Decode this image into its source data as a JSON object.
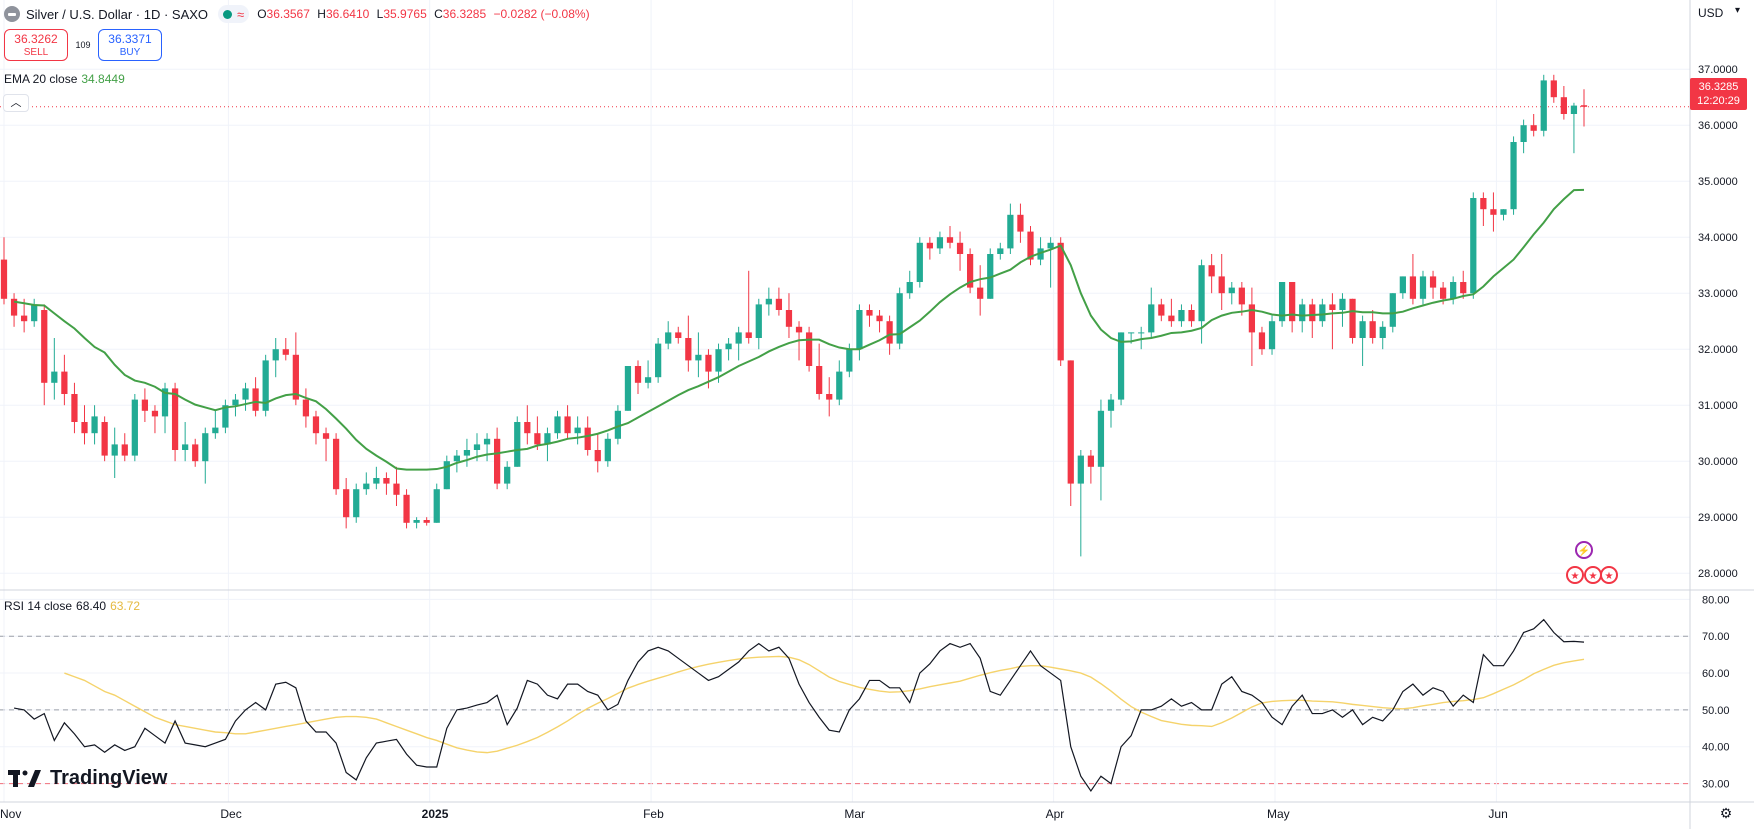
{
  "header": {
    "title": "Silver / U.S. Dollar · 1D · SAXO",
    "ohlc": [
      {
        "label": "O",
        "value": "36.3567"
      },
      {
        "label": "H",
        "value": "36.6410"
      },
      {
        "label": "L",
        "value": "35.9765"
      },
      {
        "label": "C",
        "value": "36.3285"
      }
    ],
    "change": "−0.0282 (−0.08%)"
  },
  "trade": {
    "sell_price": "36.3262",
    "sell_label": "SELL",
    "spread": "109",
    "buy_price": "36.3371",
    "buy_label": "BUY"
  },
  "indicators": {
    "ema_label": "EMA 20 close",
    "ema_value": "34.8449",
    "rsi_label": "RSI 14 close",
    "rsi_value": "68.40",
    "rsi_ma_value": "63.72"
  },
  "price_axis": {
    "currency": "USD",
    "last_price": "36.3285",
    "countdown": "12:20:29",
    "price_ticks": [
      "37.0000",
      "36.0000",
      "35.0000",
      "34.0000",
      "33.0000",
      "32.0000",
      "31.0000",
      "30.0000",
      "29.0000",
      "28.0000"
    ],
    "rsi_ticks": [
      "80.00",
      "70.00",
      "60.00",
      "50.00",
      "40.00",
      "30.00"
    ]
  },
  "time_axis": {
    "labels": [
      "Nov",
      "Dec",
      "2025",
      "Feb",
      "Mar",
      "Apr",
      "May",
      "Jun"
    ]
  },
  "branding": {
    "name": "TradingView"
  },
  "colors": {
    "up": "#22ab94",
    "down": "#f23645",
    "ema": "#43a047",
    "rsi": "#131722",
    "rsi_ma": "#f5d36b"
  },
  "chart_data": {
    "type": "candlestick",
    "candles": [
      [
        33.6,
        34.0,
        32.8,
        32.9
      ],
      [
        32.9,
        33.0,
        32.4,
        32.6
      ],
      [
        32.6,
        32.9,
        32.3,
        32.5
      ],
      [
        32.5,
        32.9,
        32.4,
        32.8
      ],
      [
        32.7,
        32.8,
        31.0,
        31.4
      ],
      [
        31.4,
        32.2,
        31.1,
        31.6
      ],
      [
        31.6,
        31.9,
        31.0,
        31.2
      ],
      [
        31.2,
        31.4,
        30.5,
        30.7
      ],
      [
        30.7,
        31.0,
        30.3,
        30.5
      ],
      [
        30.5,
        31.0,
        30.3,
        30.8
      ],
      [
        30.7,
        30.8,
        30.0,
        30.1
      ],
      [
        30.1,
        30.6,
        29.7,
        30.3
      ],
      [
        30.3,
        30.5,
        30.0,
        30.1
      ],
      [
        30.1,
        31.2,
        30.0,
        31.1
      ],
      [
        31.1,
        31.3,
        30.7,
        30.9
      ],
      [
        30.9,
        31.0,
        30.5,
        30.8
      ],
      [
        30.8,
        31.4,
        30.5,
        31.3
      ],
      [
        31.3,
        31.4,
        30.0,
        30.2
      ],
      [
        30.2,
        30.7,
        30.0,
        30.3
      ],
      [
        30.3,
        30.4,
        29.9,
        30.0
      ],
      [
        30.0,
        30.6,
        29.6,
        30.5
      ],
      [
        30.5,
        30.9,
        30.4,
        30.6
      ],
      [
        30.6,
        31.1,
        30.5,
        31.0
      ],
      [
        31.0,
        31.2,
        30.8,
        31.1
      ],
      [
        31.1,
        31.4,
        30.9,
        31.3
      ],
      [
        31.3,
        31.5,
        30.8,
        30.9
      ],
      [
        30.9,
        31.9,
        30.8,
        31.8
      ],
      [
        31.8,
        32.2,
        31.5,
        32.0
      ],
      [
        32.0,
        32.2,
        31.8,
        31.9
      ],
      [
        31.9,
        32.3,
        31.0,
        31.1
      ],
      [
        31.1,
        31.3,
        30.6,
        30.8
      ],
      [
        30.8,
        30.9,
        30.3,
        30.5
      ],
      [
        30.5,
        30.6,
        30.0,
        30.4
      ],
      [
        30.4,
        30.5,
        29.4,
        29.5
      ],
      [
        29.5,
        29.7,
        28.8,
        29.0
      ],
      [
        29.0,
        29.6,
        28.9,
        29.5
      ],
      [
        29.5,
        29.8,
        29.4,
        29.6
      ],
      [
        29.6,
        29.9,
        29.5,
        29.7
      ],
      [
        29.7,
        29.8,
        29.4,
        29.6
      ],
      [
        29.6,
        29.9,
        29.2,
        29.4
      ],
      [
        29.4,
        29.5,
        28.8,
        28.9
      ],
      [
        28.9,
        29.0,
        28.8,
        28.95
      ],
      [
        28.95,
        29.0,
        28.85,
        28.9
      ],
      [
        28.9,
        29.6,
        28.9,
        29.5
      ],
      [
        29.5,
        30.1,
        29.5,
        30.0
      ],
      [
        30.0,
        30.2,
        29.8,
        30.1
      ],
      [
        30.1,
        30.4,
        29.9,
        30.2
      ],
      [
        30.2,
        30.5,
        30.0,
        30.3
      ],
      [
        30.3,
        30.5,
        30.0,
        30.4
      ],
      [
        30.4,
        30.6,
        29.5,
        29.6
      ],
      [
        29.6,
        30.0,
        29.5,
        29.9
      ],
      [
        29.9,
        30.8,
        29.9,
        30.7
      ],
      [
        30.7,
        31.0,
        30.3,
        30.5
      ],
      [
        30.5,
        30.8,
        30.2,
        30.3
      ],
      [
        30.3,
        30.6,
        30.0,
        30.5
      ],
      [
        30.5,
        30.9,
        30.4,
        30.8
      ],
      [
        30.8,
        31.0,
        30.4,
        30.5
      ],
      [
        30.5,
        30.8,
        30.3,
        30.6
      ],
      [
        30.6,
        30.8,
        30.1,
        30.2
      ],
      [
        30.2,
        30.5,
        29.8,
        30.0
      ],
      [
        30.0,
        30.5,
        29.9,
        30.4
      ],
      [
        30.4,
        31.0,
        30.3,
        30.9
      ],
      [
        30.9,
        31.7,
        30.9,
        31.7
      ],
      [
        31.7,
        31.8,
        31.2,
        31.4
      ],
      [
        31.4,
        31.8,
        31.3,
        31.5
      ],
      [
        31.5,
        32.2,
        31.4,
        32.1
      ],
      [
        32.1,
        32.5,
        32.0,
        32.3
      ],
      [
        32.3,
        32.4,
        32.1,
        32.2
      ],
      [
        32.2,
        32.6,
        31.6,
        31.8
      ],
      [
        31.8,
        32.3,
        31.5,
        31.9
      ],
      [
        31.9,
        32.0,
        31.3,
        31.6
      ],
      [
        31.6,
        32.1,
        31.4,
        32.0
      ],
      [
        32.0,
        32.2,
        31.8,
        32.1
      ],
      [
        32.1,
        32.4,
        31.8,
        32.3
      ],
      [
        32.3,
        33.4,
        32.1,
        32.2
      ],
      [
        32.2,
        32.9,
        32.0,
        32.8
      ],
      [
        32.8,
        33.1,
        32.6,
        32.9
      ],
      [
        32.9,
        33.1,
        32.6,
        32.7
      ],
      [
        32.7,
        33.0,
        32.2,
        32.4
      ],
      [
        32.4,
        32.5,
        31.8,
        32.3
      ],
      [
        32.3,
        32.4,
        31.6,
        31.7
      ],
      [
        31.7,
        32.1,
        31.1,
        31.2
      ],
      [
        31.2,
        31.5,
        30.8,
        31.1
      ],
      [
        31.1,
        31.8,
        31.0,
        31.6
      ],
      [
        31.6,
        32.1,
        31.5,
        32.0
      ],
      [
        32.0,
        32.8,
        31.8,
        32.7
      ],
      [
        32.7,
        32.8,
        32.4,
        32.6
      ],
      [
        32.6,
        32.7,
        32.3,
        32.5
      ],
      [
        32.5,
        32.6,
        31.9,
        32.1
      ],
      [
        32.1,
        33.1,
        32.0,
        33.0
      ],
      [
        33.0,
        33.4,
        32.9,
        33.2
      ],
      [
        33.2,
        34.0,
        33.1,
        33.9
      ],
      [
        33.9,
        34.0,
        33.6,
        33.8
      ],
      [
        33.8,
        34.1,
        33.7,
        34.0
      ],
      [
        34.0,
        34.2,
        33.8,
        33.9
      ],
      [
        33.9,
        34.1,
        33.4,
        33.7
      ],
      [
        33.7,
        33.8,
        33.0,
        33.1
      ],
      [
        33.1,
        33.5,
        32.6,
        32.9
      ],
      [
        32.9,
        33.8,
        32.9,
        33.7
      ],
      [
        33.7,
        33.9,
        33.6,
        33.8
      ],
      [
        33.8,
        34.6,
        33.7,
        34.4
      ],
      [
        34.4,
        34.6,
        33.9,
        34.1
      ],
      [
        34.1,
        34.2,
        33.5,
        33.6
      ],
      [
        33.6,
        34.0,
        33.5,
        33.8
      ],
      [
        33.8,
        34.0,
        33.1,
        33.9
      ],
      [
        33.9,
        34.0,
        31.7,
        31.8
      ],
      [
        31.8,
        31.8,
        29.2,
        29.6
      ],
      [
        29.6,
        30.2,
        28.3,
        30.1
      ],
      [
        30.1,
        30.2,
        29.6,
        29.9
      ],
      [
        29.9,
        31.1,
        29.3,
        30.9
      ],
      [
        30.9,
        31.2,
        30.6,
        31.1
      ],
      [
        31.1,
        32.3,
        31.0,
        32.3
      ],
      [
        32.3,
        32.3,
        32.1,
        32.3
      ],
      [
        32.3,
        32.4,
        32.0,
        32.3
      ],
      [
        32.3,
        33.1,
        32.2,
        32.8
      ],
      [
        32.8,
        32.9,
        32.5,
        32.6
      ],
      [
        32.6,
        32.9,
        32.4,
        32.5
      ],
      [
        32.5,
        32.8,
        32.4,
        32.7
      ],
      [
        32.7,
        32.8,
        32.4,
        32.5
      ],
      [
        32.5,
        33.6,
        32.1,
        33.5
      ],
      [
        33.5,
        33.7,
        33.0,
        33.3
      ],
      [
        33.3,
        33.7,
        32.7,
        33.0
      ],
      [
        33.0,
        33.2,
        32.8,
        33.1
      ],
      [
        33.1,
        33.2,
        32.6,
        32.8
      ],
      [
        32.8,
        33.1,
        31.7,
        32.3
      ],
      [
        32.3,
        32.4,
        31.9,
        32.0
      ],
      [
        32.0,
        32.6,
        31.9,
        32.5
      ],
      [
        32.5,
        33.2,
        32.4,
        33.2
      ],
      [
        33.2,
        33.2,
        32.3,
        32.5
      ],
      [
        32.5,
        32.9,
        32.3,
        32.8
      ],
      [
        32.8,
        32.9,
        32.2,
        32.5
      ],
      [
        32.5,
        32.9,
        32.4,
        32.8
      ],
      [
        32.8,
        33.0,
        32.0,
        32.7
      ],
      [
        32.7,
        33.0,
        32.4,
        32.9
      ],
      [
        32.9,
        32.9,
        32.1,
        32.2
      ],
      [
        32.2,
        32.6,
        31.7,
        32.5
      ],
      [
        32.5,
        32.7,
        32.1,
        32.2
      ],
      [
        32.2,
        32.5,
        32.0,
        32.4
      ],
      [
        32.4,
        33.0,
        32.3,
        33.0
      ],
      [
        33.0,
        33.3,
        32.9,
        33.3
      ],
      [
        33.3,
        33.7,
        32.8,
        32.9
      ],
      [
        32.9,
        33.4,
        32.8,
        33.3
      ],
      [
        33.3,
        33.4,
        32.9,
        33.1
      ],
      [
        33.1,
        33.2,
        32.8,
        32.9
      ],
      [
        32.9,
        33.3,
        32.8,
        33.2
      ],
      [
        33.2,
        33.4,
        32.9,
        33.0
      ],
      [
        33.0,
        34.8,
        32.9,
        34.7
      ],
      [
        34.7,
        34.8,
        34.2,
        34.5
      ],
      [
        34.5,
        34.8,
        34.1,
        34.4
      ],
      [
        34.4,
        34.5,
        34.3,
        34.5
      ],
      [
        34.5,
        35.8,
        34.4,
        35.7
      ],
      [
        35.7,
        36.1,
        35.5,
        36.0
      ],
      [
        36.0,
        36.2,
        35.8,
        35.9
      ],
      [
        35.9,
        36.9,
        35.8,
        36.8
      ],
      [
        36.8,
        36.9,
        36.4,
        36.5
      ],
      [
        36.5,
        36.7,
        36.1,
        36.2
      ],
      [
        36.2,
        36.4,
        35.5,
        36.35
      ],
      [
        36.3567,
        36.641,
        35.9765,
        36.3285
      ]
    ],
    "ema20": [
      32.85,
      32.82,
      32.79,
      32.78,
      32.64,
      32.5,
      32.37,
      32.2,
      32.04,
      31.94,
      31.72,
      31.54,
      31.44,
      31.4,
      31.33,
      31.22,
      31.2,
      31.1,
      31.01,
      30.96,
      30.91,
      30.96,
      30.98,
      31.02,
      31.06,
      31.04,
      31.12,
      31.18,
      31.2,
      31.13,
      31.07,
      30.93,
      30.76,
      30.58,
      30.38,
      30.22,
      30.1,
      29.99,
      29.87,
      29.85,
      29.85,
      29.85,
      29.86,
      29.9,
      29.97,
      30.02,
      30.08,
      30.12,
      30.14,
      30.17,
      30.2,
      30.22,
      30.28,
      30.31,
      30.35,
      30.4,
      30.42,
      30.45,
      30.49,
      30.55,
      30.62,
      30.68,
      30.78,
      30.88,
      30.98,
      31.08,
      31.18,
      31.27,
      31.34,
      31.42,
      31.5,
      31.6,
      31.7,
      31.78,
      31.86,
      31.96,
      32.04,
      32.11,
      32.16,
      32.17,
      32.17,
      32.09,
      32.03,
      32.0,
      32.0,
      32.08,
      32.16,
      32.26,
      32.27,
      32.39,
      32.51,
      32.67,
      32.84,
      32.98,
      33.1,
      33.2,
      33.25,
      33.28,
      33.35,
      33.42,
      33.55,
      33.65,
      33.72,
      33.78,
      33.85,
      33.5,
      33.0,
      32.6,
      32.35,
      32.2,
      32.13,
      32.14,
      32.18,
      32.2,
      32.24,
      32.29,
      32.3,
      32.33,
      32.38,
      32.52,
      32.6,
      32.65,
      32.67,
      32.7,
      32.67,
      32.62,
      32.6,
      32.62,
      32.6,
      32.61,
      32.62,
      32.64,
      32.65,
      32.68,
      32.66,
      32.66,
      32.64,
      32.64,
      32.67,
      32.73,
      32.78,
      32.83,
      32.87,
      32.9,
      32.95,
      32.98,
      33.12,
      33.3,
      33.45,
      33.6,
      33.82,
      34.05,
      34.26,
      34.5,
      34.68,
      34.84,
      34.8449
    ],
    "rsi": [
      50.5,
      50,
      47.5,
      49,
      41.7,
      46.5,
      43.5,
      40,
      40.5,
      38.5,
      40.5,
      39,
      40,
      45,
      43,
      41,
      47,
      41,
      40.5,
      40,
      41,
      42,
      47,
      50,
      52,
      50,
      57,
      57.5,
      56,
      47,
      44,
      44,
      41,
      33,
      31,
      37,
      41,
      41.5,
      42,
      38,
      35,
      34.5,
      34.5,
      45,
      50,
      50.5,
      51.3,
      52,
      54,
      46,
      50.5,
      58,
      57,
      54,
      53,
      57,
      57,
      55,
      54,
      50,
      51.5,
      58,
      63,
      66,
      67,
      66,
      64,
      62,
      60,
      58,
      59,
      61,
      63,
      66,
      68,
      66,
      67,
      64,
      57,
      52,
      48,
      44.5,
      44,
      50,
      53,
      58,
      58,
      56,
      56,
      52,
      60,
      62.5,
      66,
      68,
      67,
      68,
      64,
      55,
      54,
      58,
      62,
      66,
      62,
      60,
      58,
      40,
      32,
      28,
      32,
      30,
      40,
      43,
      50,
      50,
      51,
      53,
      51,
      52,
      50,
      50,
      57,
      59,
      55,
      54,
      52,
      48,
      46,
      51,
      54,
      49,
      49,
      50,
      48,
      50,
      46,
      48,
      47,
      50,
      55,
      57,
      54,
      56,
      55,
      51,
      54,
      52,
      65,
      62,
      62,
      66,
      71,
      72,
      74.5,
      71,
      68.5,
      68.6,
      68.4
    ],
    "rsi_ma": [
      60,
      59,
      58,
      56.5,
      55,
      54,
      52.5,
      51,
      49.5,
      48,
      47,
      46,
      45.5,
      45,
      44.5,
      44,
      43.8,
      43.5,
      43.5,
      44,
      44.5,
      45,
      45.5,
      46,
      46.5,
      47,
      47.5,
      48,
      48.2,
      48.2,
      48,
      47.5,
      46.5,
      45.5,
      44.5,
      43.5,
      42.5,
      41.7,
      40.7,
      39.7,
      39.1,
      38.6,
      38.4,
      38.8,
      39.6,
      40.4,
      41.4,
      42.5,
      43.9,
      45.4,
      47,
      48.8,
      50.4,
      51.8,
      53.1,
      54.5,
      55.9,
      56.9,
      57.8,
      58.6,
      59.4,
      60.3,
      61.1,
      61.8,
      62.4,
      62.9,
      63.4,
      63.8,
      64.1,
      64.3,
      64.4,
      64.5,
      64.3,
      63.6,
      62.3,
      60.6,
      58.9,
      57.7,
      56.9,
      56.1,
      55.6,
      55.1,
      54.8,
      54.9,
      55.2,
      55.7,
      56.3,
      56.8,
      57.3,
      57.8,
      58.6,
      59.4,
      60.1,
      60.7,
      61.2,
      61.8,
      62,
      62,
      61.6,
      61.1,
      60.6,
      60,
      58.9,
      57.1,
      55.1,
      52.9,
      50.9,
      49.4,
      48.2,
      47.1,
      46.6,
      46.1,
      45.8,
      45.7,
      45.5,
      46.5,
      47.8,
      49.3,
      50.8,
      51.9,
      52.3,
      52.5,
      52.6,
      52.6,
      52.4,
      52.3,
      52.2,
      51.9,
      51.5,
      51.2,
      50.9,
      50.6,
      50.4,
      50.3,
      50.6,
      51.1,
      51.5,
      52,
      52.3,
      52.5,
      52.8,
      53.3,
      54.4,
      55.6,
      56.8,
      58.2,
      59.8,
      61,
      62.1,
      62.8,
      63.3,
      63.72
    ],
    "y_range": [
      27.7,
      37.7
    ],
    "rsi_range": [
      25,
      82
    ]
  }
}
